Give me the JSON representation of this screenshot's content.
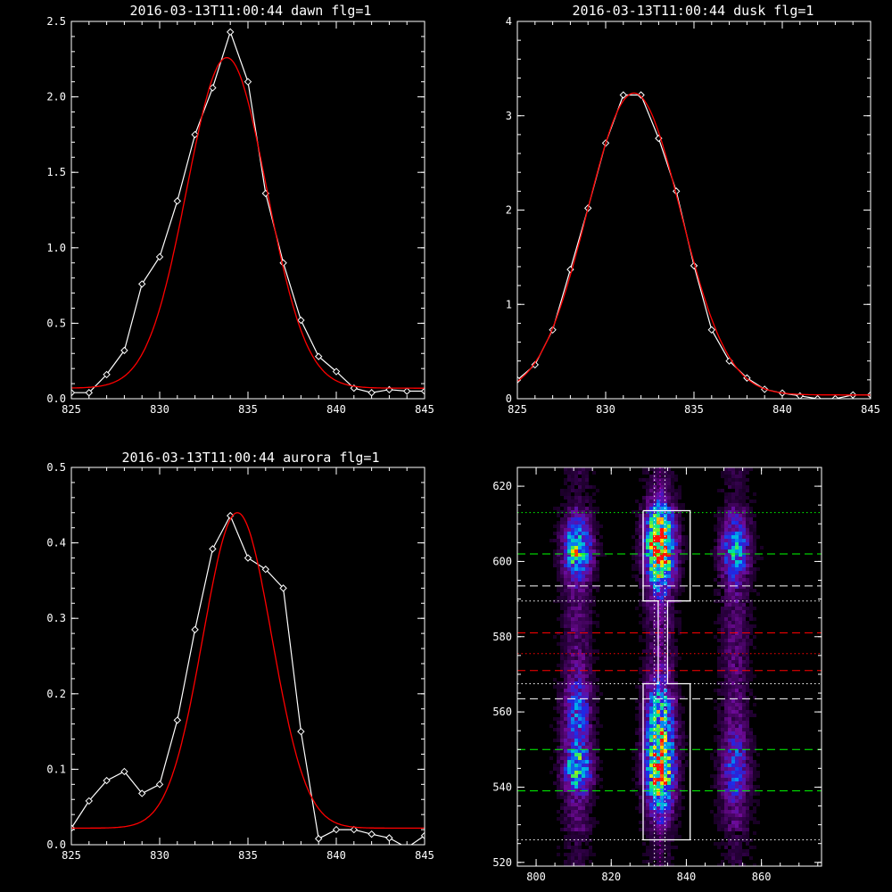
{
  "chart_data": [
    {
      "type": "line",
      "title": "2016-03-13T11:00:44 dawn flg=1",
      "xlim": [
        825,
        845
      ],
      "ylim": [
        0,
        2.5
      ],
      "xticks": [
        "825",
        "830",
        "835",
        "840",
        "845"
      ],
      "yticks": [
        "0.0",
        "0.5",
        "1.0",
        "1.5",
        "2.0",
        "2.5"
      ],
      "grid": false,
      "series": [
        {
          "color": "#ffffff",
          "markers": "diamond",
          "x": [
            825,
            826,
            827,
            828,
            829,
            830,
            831,
            832,
            833,
            834,
            835,
            836,
            837,
            838,
            839,
            840,
            841,
            842,
            843,
            844,
            845
          ],
          "y": [
            0.04,
            0.04,
            0.16,
            0.32,
            0.76,
            0.94,
            1.31,
            1.75,
            2.06,
            2.43,
            2.1,
            1.36,
            0.9,
            0.52,
            0.28,
            0.18,
            0.07,
            0.04,
            0.06,
            0.05,
            0.05
          ]
        },
        {
          "color": "#ff0000",
          "fit": "gaussian",
          "amp": 2.19,
          "center": 833.8,
          "sigma": 2.25,
          "offset": 0.07
        }
      ]
    },
    {
      "type": "line",
      "title": "2016-03-13T11:00:44 dusk flg=1",
      "xlim": [
        825,
        845
      ],
      "ylim": [
        0,
        4
      ],
      "xticks": [
        "825",
        "830",
        "835",
        "840",
        "845"
      ],
      "yticks": [
        "0",
        "1",
        "2",
        "3",
        "4"
      ],
      "grid": false,
      "series": [
        {
          "color": "#ffffff",
          "markers": "diamond",
          "x": [
            825,
            826,
            827,
            828,
            829,
            830,
            831,
            832,
            833,
            834,
            835,
            836,
            837,
            838,
            839,
            840,
            841,
            842,
            843,
            844,
            845
          ],
          "y": [
            0.2,
            0.36,
            0.73,
            1.37,
            2.02,
            2.71,
            3.22,
            3.22,
            2.76,
            2.2,
            1.41,
            0.73,
            0.4,
            0.22,
            0.1,
            0.06,
            0.03,
            0.0,
            0.0,
            0.04,
            0.04
          ]
        },
        {
          "color": "#ff0000",
          "fit": "gaussian",
          "amp": 3.2,
          "center": 831.6,
          "sigma": 2.65,
          "offset": 0.04
        }
      ]
    },
    {
      "type": "line",
      "title": "2016-03-13T11:00:44 aurora flg=1",
      "xlim": [
        825,
        845
      ],
      "ylim": [
        0,
        0.5
      ],
      "xticks": [
        "825",
        "830",
        "835",
        "840",
        "845"
      ],
      "yticks": [
        "0.0",
        "0.1",
        "0.2",
        "0.3",
        "0.4",
        "0.5"
      ],
      "grid": false,
      "series": [
        {
          "color": "#ffffff",
          "markers": "diamond",
          "x": [
            825,
            826,
            827,
            828,
            829,
            830,
            831,
            832,
            833,
            834,
            835,
            836,
            837,
            838,
            839,
            840,
            841,
            842,
            843,
            844,
            845
          ],
          "y": [
            0.022,
            0.058,
            0.085,
            0.097,
            0.068,
            0.08,
            0.165,
            0.285,
            0.392,
            0.436,
            0.38,
            0.365,
            0.34,
            0.15,
            0.008,
            0.02,
            0.02,
            0.014,
            0.009,
            -0.004,
            0.012
          ]
        },
        {
          "color": "#ff0000",
          "fit": "gaussian",
          "amp": 0.418,
          "center": 834.4,
          "sigma": 1.95,
          "offset": 0.022
        }
      ]
    },
    {
      "type": "heatmap",
      "title": "",
      "xlim": [
        795,
        876
      ],
      "ylim": [
        519,
        625
      ],
      "xticks": [
        "800",
        "820",
        "840",
        "860"
      ],
      "yticks": [
        "520",
        "540",
        "560",
        "580",
        "600",
        "620"
      ],
      "columns": [
        {
          "x": 811,
          "rows": [
            {
              "y": 603,
              "peak": 0.55,
              "sy": 4.5
            },
            {
              "y": 545,
              "peak": 0.5,
              "sy": 4
            },
            {
              "y": 560,
              "peak": 0.25,
              "sy": 6
            }
          ]
        },
        {
          "x": 833,
          "rows": [
            {
              "y": 604,
              "peak": 0.95,
              "sy": 7
            },
            {
              "y": 545,
              "peak": 0.78,
              "sy": 7
            },
            {
              "y": 560,
              "peak": 0.4,
              "sy": 6
            }
          ]
        },
        {
          "x": 853,
          "rows": [
            {
              "y": 603,
              "peak": 0.35,
              "sy": 5
            },
            {
              "y": 545,
              "peak": 0.22,
              "sy": 6
            }
          ]
        }
      ],
      "hlines": [
        {
          "y": 613,
          "color": "#00ff00",
          "style": "dotted"
        },
        {
          "y": 602,
          "color": "#00ff00",
          "style": "dashed"
        },
        {
          "y": 593.5,
          "color": "#ffffff",
          "style": "dashed"
        },
        {
          "y": 589.5,
          "color": "#ffffff",
          "style": "dotted"
        },
        {
          "y": 581,
          "color": "#ff0000",
          "style": "dashed"
        },
        {
          "y": 575.5,
          "color": "#ff0000",
          "style": "dotted"
        },
        {
          "y": 571,
          "color": "#ff0000",
          "style": "dashed"
        },
        {
          "y": 567.5,
          "color": "#ffffff",
          "style": "dotted"
        },
        {
          "y": 563.5,
          "color": "#ffffff",
          "style": "dashed"
        },
        {
          "y": 550,
          "color": "#00ff00",
          "style": "dashed"
        },
        {
          "y": 539,
          "color": "#00ff00",
          "style": "dashed"
        },
        {
          "y": 526,
          "color": "#ffffff",
          "style": "dotted"
        }
      ],
      "vlines": [
        {
          "x": 831.5,
          "color": "#ffffff",
          "style": "dotted"
        },
        {
          "x": 834.3,
          "color": "#ffffff",
          "style": "dotted"
        },
        {
          "x": 833,
          "color": "#ff00ff",
          "style": "dotted"
        }
      ],
      "outline": [
        [
          828.5,
          613.5
        ],
        [
          841,
          613.5
        ],
        [
          841,
          589.5
        ],
        [
          835,
          589.5
        ],
        [
          835,
          567.5
        ],
        [
          841,
          567.5
        ],
        [
          841,
          526
        ],
        [
          828.5,
          526
        ],
        [
          828.5,
          567.5
        ],
        [
          832.5,
          567.5
        ],
        [
          832.5,
          589.5
        ],
        [
          828.5,
          589.5
        ],
        [
          828.5,
          613.5
        ]
      ]
    }
  ]
}
